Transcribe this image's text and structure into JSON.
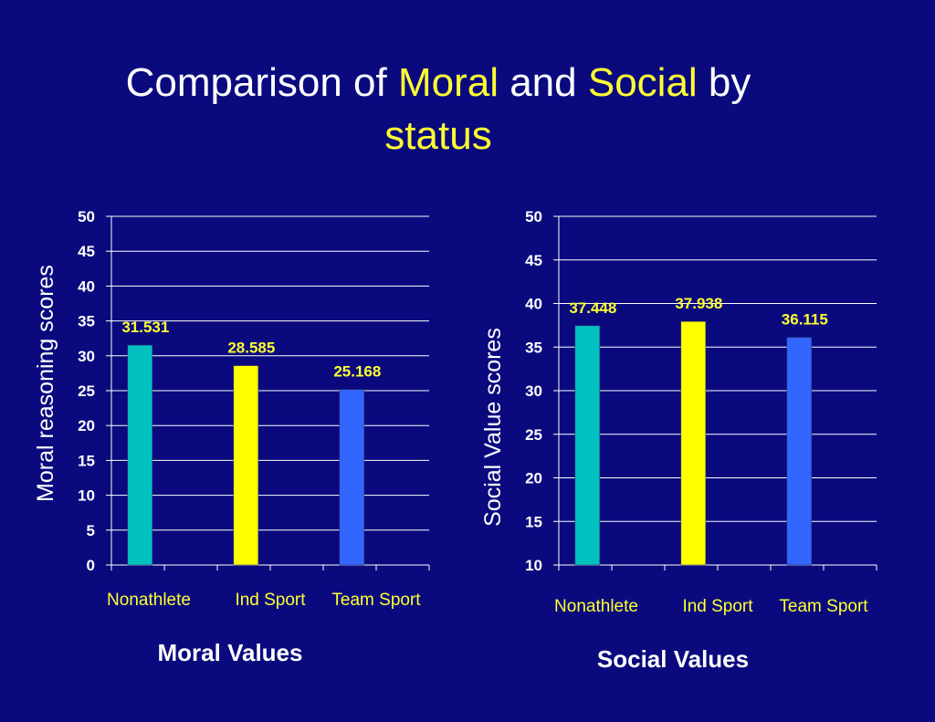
{
  "slide": {
    "title_parts": {
      "p1": "Comparison of ",
      "p2": "Moral",
      "p3": " and ",
      "p4": "Social",
      "p5": " by",
      "p6": "status"
    }
  },
  "colors": {
    "background": "#0a0a7e",
    "highlight": "#ffff33",
    "series": [
      "#00c0c0",
      "#ffff00",
      "#3366ff"
    ]
  },
  "chart_data": [
    {
      "type": "bar",
      "categories": [
        "Nonathlete",
        "Ind Sport",
        "Team Sport"
      ],
      "values": [
        31.531,
        28.585,
        25.168
      ],
      "data_labels": [
        "31.531",
        "28.585",
        "25.168"
      ],
      "ylabel": "Moral reasoning scores",
      "xlabel": "Moral Values",
      "ylim": [
        0,
        50
      ],
      "yticks": [
        0,
        5,
        10,
        15,
        20,
        25,
        30,
        35,
        40,
        45,
        50
      ],
      "grid": true
    },
    {
      "type": "bar",
      "categories": [
        "Nonathlete",
        "Ind Sport",
        "Team Sport"
      ],
      "values": [
        37.448,
        37.938,
        36.115
      ],
      "data_labels": [
        "37.448",
        "37.938",
        "36.115"
      ],
      "ylabel": "Social Value scores",
      "xlabel": "Social Values",
      "ylim": [
        10,
        50
      ],
      "yticks": [
        10,
        15,
        20,
        25,
        30,
        35,
        40,
        45,
        50
      ],
      "grid": true
    }
  ]
}
